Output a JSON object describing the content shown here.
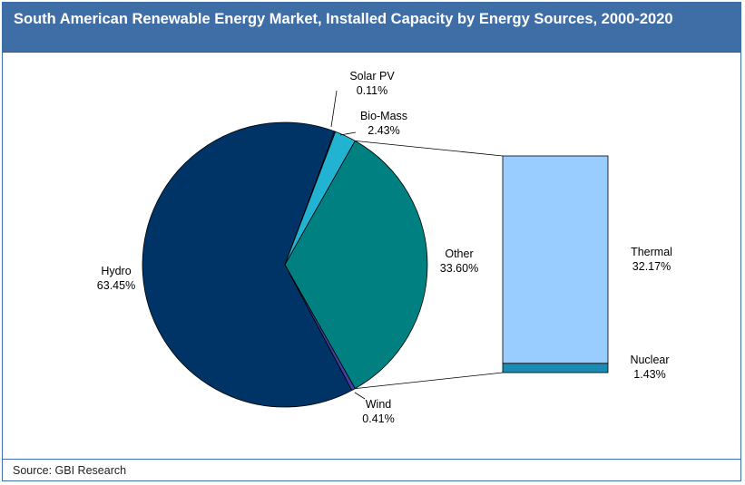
{
  "header": {
    "title": "South American Renewable Energy Market, Installed Capacity by Energy Sources, 2000-2020"
  },
  "footer": {
    "source": "Source: GBI Research"
  },
  "colors": {
    "title_bar": "#3f6ea6",
    "hydro": "#003366",
    "solar_pv": "#4d79c7",
    "bio_mass": "#22b3d2",
    "other": "#008080",
    "wind": "#3f3fa6",
    "thermal": "#99ccff",
    "nuclear": "#1a8cb4"
  },
  "chart_data": {
    "type": "pie",
    "subtype": "bar-of-pie",
    "title": "South American Renewable Energy Market, Installed Capacity by Energy Sources, 2000-2020",
    "slices": [
      {
        "name": "Hydro",
        "value": 63.45,
        "label": "63.45%",
        "color": "#003366"
      },
      {
        "name": "Solar PV",
        "value": 0.11,
        "label": "0.11%",
        "color": "#4d79c7"
      },
      {
        "name": "Bio-Mass",
        "value": 2.43,
        "label": "2.43%",
        "color": "#22b3d2"
      },
      {
        "name": "Other",
        "value": 33.6,
        "label": "33.60%",
        "color": "#008080"
      },
      {
        "name": "Wind",
        "value": 0.41,
        "label": "0.41%",
        "color": "#3f3fa6"
      }
    ],
    "breakdown_of": "Other",
    "breakdown": [
      {
        "name": "Thermal",
        "value": 32.17,
        "label": "32.17%",
        "color": "#99ccff"
      },
      {
        "name": "Nuclear",
        "value": 1.43,
        "label": "1.43%",
        "color": "#1a8cb4"
      }
    ]
  }
}
